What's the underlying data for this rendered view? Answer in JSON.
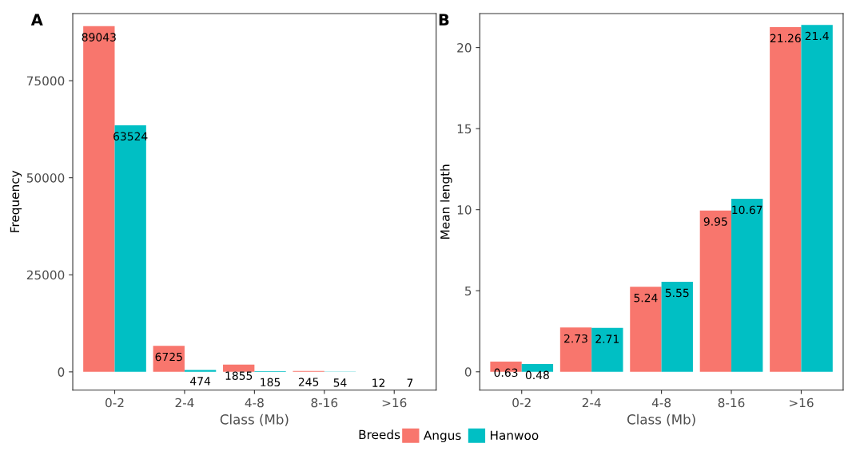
{
  "chart_data": [
    {
      "type": "bar",
      "title": "A",
      "xlabel": "Class (Mb)",
      "ylabel": "Frequency",
      "categories": [
        "0-2",
        "2-4",
        "4-8",
        "8-16",
        ">16"
      ],
      "series": [
        {
          "name": "Angus",
          "color": "#f8766d",
          "values": [
            89043,
            6725,
            1855,
            245,
            12
          ]
        },
        {
          "name": "Hanwoo",
          "color": "#00bfc4",
          "values": [
            63524,
            474,
            185,
            54,
            7
          ]
        }
      ],
      "ylim": [
        -4700,
        92300
      ],
      "yticks": [
        0,
        25000,
        50000,
        75000
      ],
      "data_labels": true,
      "grid": false,
      "legend": "bottom",
      "legend_title": "Breeds"
    },
    {
      "type": "bar",
      "title": "B",
      "xlabel": "Class (Mb)",
      "ylabel": "Mean length",
      "categories": [
        "0-2",
        "2-4",
        "4-8",
        "8-16",
        ">16"
      ],
      "series": [
        {
          "color": "#f8766d",
          "values": [
            0.63,
            2.73,
            5.24,
            9.95,
            21.26
          ]
        },
        {
          "color": "#00bfc4",
          "values": [
            0.48,
            2.71,
            5.55,
            10.67,
            21.4
          ]
        }
      ],
      "ylim": [
        -1.13,
        22.1
      ],
      "yticks": [
        0,
        5,
        10,
        15,
        20
      ],
      "data_labels": true,
      "grid": false
    }
  ]
}
